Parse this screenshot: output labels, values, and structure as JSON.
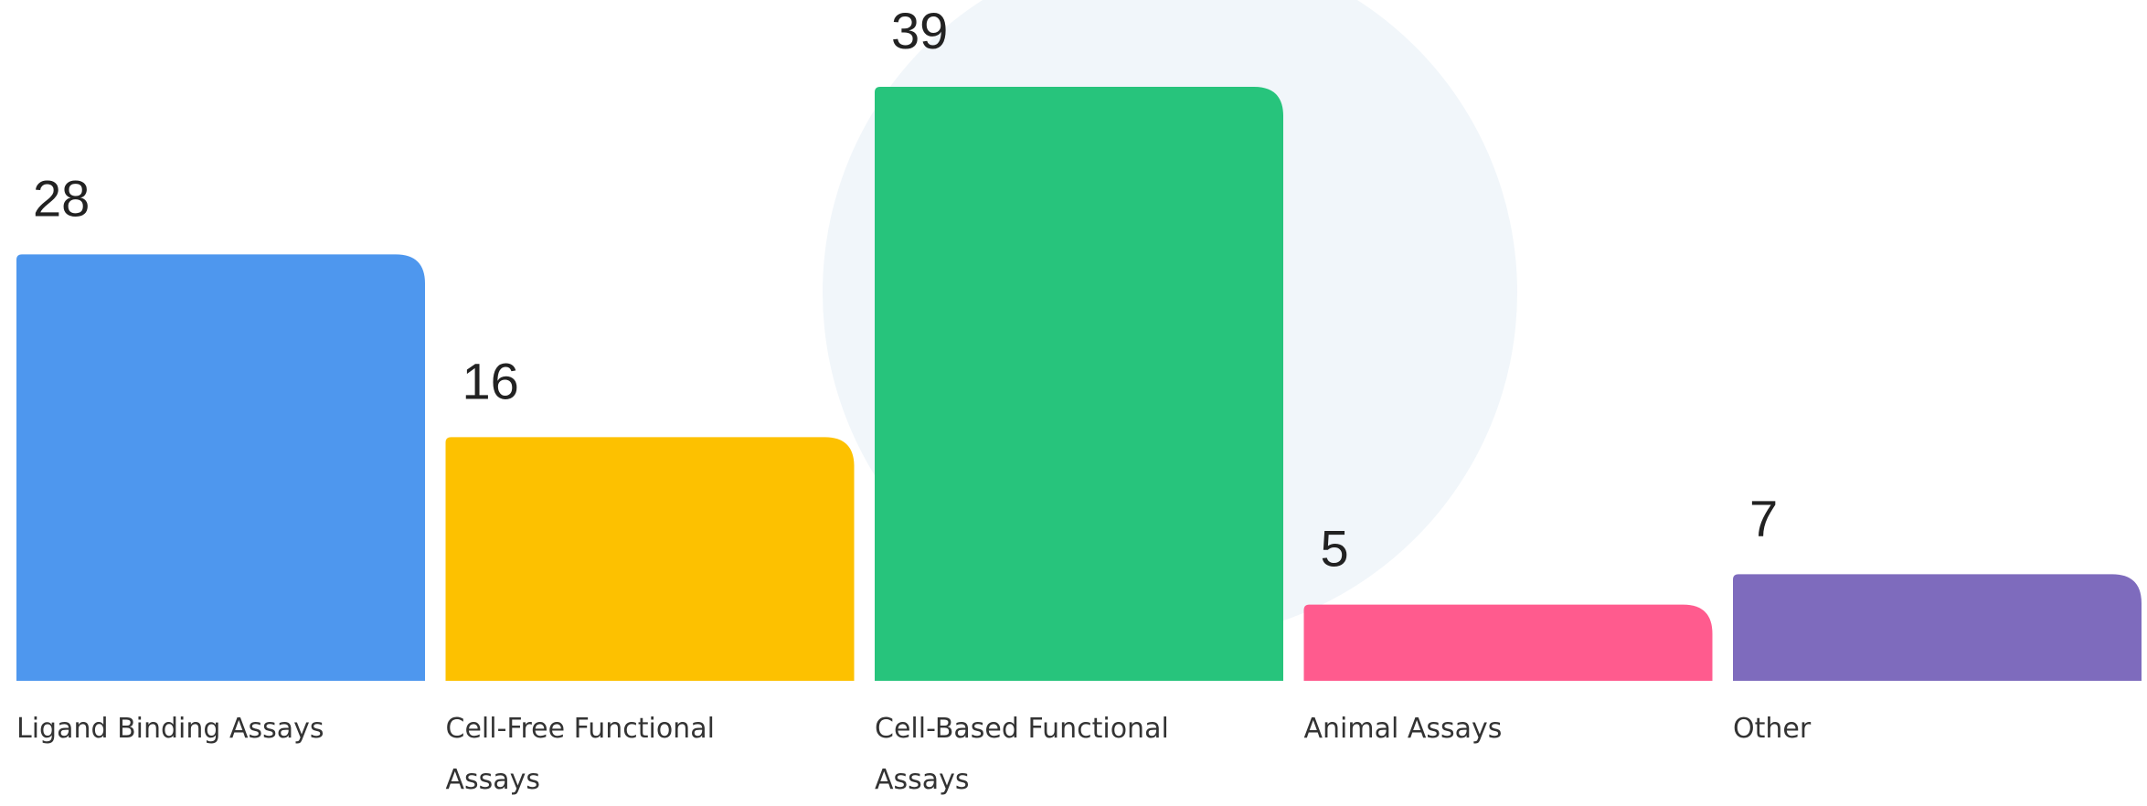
{
  "chart_data": {
    "type": "bar",
    "categories": [
      "Ligand Binding Assays",
      "Cell-Free Functional Assays",
      "Cell-Based Functional Assays",
      "Animal Assays",
      "Other"
    ],
    "values": [
      28,
      16,
      39,
      5,
      7
    ],
    "colors": [
      "#4e97ee",
      "#fdc100",
      "#27c47c",
      "#ff5b8e",
      "#7e6bbd"
    ]
  }
}
